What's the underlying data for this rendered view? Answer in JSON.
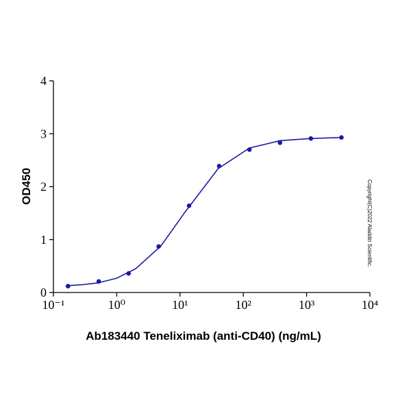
{
  "chart_data": {
    "type": "scatter",
    "x_label": "Ab183440 Teneliximab (anti-CD40) (ng/mL)",
    "y_label": "OD450",
    "annotation": "Copyright(C)2022 Aladdin Scientific.",
    "x_scale": "log",
    "xlim": [
      0.1,
      10000
    ],
    "xticks": [
      {
        "value": 0.1,
        "label": "10⁻¹"
      },
      {
        "value": 1,
        "label": "10⁰"
      },
      {
        "value": 10,
        "label": "10¹"
      },
      {
        "value": 100,
        "label": "10²"
      },
      {
        "value": 1000,
        "label": "10³"
      },
      {
        "value": 10000,
        "label": "10⁴"
      }
    ],
    "ylim": [
      0,
      4
    ],
    "yticks": [
      0,
      1,
      2,
      3,
      4
    ],
    "grid": false,
    "color": "#1a1aa6",
    "x": [
      0.17,
      0.52,
      1.54,
      4.6,
      13.9,
      41.5,
      125,
      380,
      1170,
      3550
    ],
    "values": [
      0.12,
      0.21,
      0.36,
      0.87,
      1.64,
      2.39,
      2.7,
      2.83,
      2.91,
      2.93
    ],
    "curve": {
      "color": "#1a1aa6",
      "x": [
        0.17,
        0.3,
        0.5,
        1,
        2,
        5,
        12,
        40,
        125,
        380,
        1170,
        3550
      ],
      "values": [
        0.13,
        0.15,
        0.18,
        0.27,
        0.45,
        0.88,
        1.52,
        2.34,
        2.73,
        2.87,
        2.91,
        2.93
      ]
    }
  }
}
